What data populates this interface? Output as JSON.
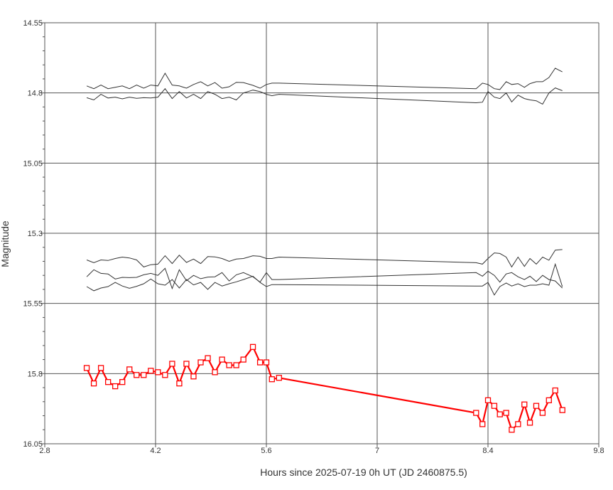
{
  "chart_data": {
    "type": "line",
    "xlabel": "Hours since 2025-07-19 0h UT (JD 2460875.5)",
    "ylabel": "Magnitude",
    "y_inverted": true,
    "xlim": [
      2.8,
      9.8
    ],
    "ylim": [
      14.55,
      16.05
    ],
    "x_ticks": [
      "2.8",
      "4.2",
      "5.6",
      "7",
      "8.4",
      "9.8"
    ],
    "y_ticks": [
      "14.55",
      "14.8",
      "15.05",
      "15.3",
      "15.55",
      "15.8",
      "16.05"
    ],
    "grid": true,
    "legend": "none",
    "target_color": "#ff0000",
    "comparison_color": "#333333",
    "target": {
      "x": [
        3.33,
        3.42,
        3.51,
        3.6,
        3.69,
        3.78,
        3.87,
        3.96,
        4.05,
        4.14,
        4.23,
        4.32,
        4.41,
        4.5,
        4.59,
        4.68,
        4.77,
        4.86,
        4.95,
        5.04,
        5.13,
        5.22,
        5.31,
        5.43,
        5.52,
        5.6,
        5.67,
        5.76,
        8.25,
        8.33,
        8.4,
        8.48,
        8.55,
        8.63,
        8.7,
        8.78,
        8.86,
        8.93,
        9.01,
        9.09,
        9.17,
        9.25,
        9.34
      ],
      "y": [
        15.78,
        15.835,
        15.78,
        15.83,
        15.845,
        15.83,
        15.785,
        15.805,
        15.805,
        15.79,
        15.795,
        15.805,
        15.765,
        15.835,
        15.765,
        15.81,
        15.76,
        15.745,
        15.795,
        15.75,
        15.77,
        15.77,
        15.75,
        15.705,
        15.76,
        15.76,
        15.82,
        15.815,
        15.94,
        15.98,
        15.895,
        15.915,
        15.945,
        15.94,
        16.0,
        15.98,
        15.91,
        15.975,
        15.915,
        15.94,
        15.895,
        15.86,
        15.93
      ]
    },
    "comparison_series": [
      {
        "x": [
          3.33,
          3.42,
          3.51,
          3.6,
          3.69,
          3.78,
          3.87,
          3.96,
          4.05,
          4.14,
          4.23,
          4.32,
          4.41,
          4.5,
          4.59,
          4.68,
          4.77,
          4.86,
          4.95,
          5.04,
          5.13,
          5.22,
          5.31,
          5.43,
          5.52,
          5.6,
          5.67,
          5.76,
          8.25,
          8.33,
          8.4,
          8.48,
          8.55,
          8.63,
          8.7,
          8.78,
          8.86,
          8.93,
          9.01,
          9.09,
          9.17,
          9.25,
          9.34
        ],
        "y": [
          14.775,
          14.785,
          14.772,
          14.785,
          14.78,
          14.775,
          14.785,
          14.772,
          14.783,
          14.772,
          14.775,
          14.73,
          14.772,
          14.775,
          14.783,
          14.77,
          14.76,
          14.775,
          14.763,
          14.783,
          14.778,
          14.762,
          14.763,
          14.773,
          14.783,
          14.77,
          14.765,
          14.765,
          14.785,
          14.765,
          14.77,
          14.785,
          14.788,
          14.76,
          14.77,
          14.767,
          14.78,
          14.767,
          14.76,
          14.76,
          14.745,
          14.712,
          14.725
        ]
      },
      {
        "x": [
          3.33,
          3.42,
          3.51,
          3.6,
          3.69,
          3.78,
          3.87,
          3.96,
          4.05,
          4.14,
          4.23,
          4.32,
          4.41,
          4.5,
          4.59,
          4.68,
          4.77,
          4.86,
          4.95,
          5.04,
          5.13,
          5.22,
          5.31,
          5.43,
          5.52,
          5.6,
          5.67,
          5.76,
          8.25,
          8.33,
          8.4,
          8.48,
          8.55,
          8.63,
          8.7,
          8.78,
          8.86,
          8.93,
          9.01,
          9.09,
          9.17,
          9.25,
          9.34
        ],
        "y": [
          14.817,
          14.825,
          14.805,
          14.818,
          14.815,
          14.821,
          14.815,
          14.819,
          14.817,
          14.818,
          14.815,
          14.785,
          14.82,
          14.795,
          14.818,
          14.805,
          14.82,
          14.795,
          14.805,
          14.82,
          14.815,
          14.825,
          14.8,
          14.79,
          14.795,
          14.805,
          14.81,
          14.805,
          14.835,
          14.833,
          14.795,
          14.815,
          14.82,
          14.8,
          14.832,
          14.808,
          14.82,
          14.825,
          14.828,
          14.84,
          14.8,
          14.782,
          14.792
        ]
      },
      {
        "x": [
          3.33,
          3.42,
          3.51,
          3.6,
          3.69,
          3.78,
          3.87,
          3.96,
          4.05,
          4.14,
          4.23,
          4.32,
          4.41,
          4.5,
          4.59,
          4.68,
          4.77,
          4.86,
          4.95,
          5.04,
          5.13,
          5.22,
          5.31,
          5.43,
          5.52,
          5.6,
          5.67,
          5.76,
          8.25,
          8.33,
          8.4,
          8.48,
          8.55,
          8.63,
          8.7,
          8.78,
          8.86,
          8.93,
          9.01,
          9.09,
          9.17,
          9.25,
          9.34
        ],
        "y": [
          15.395,
          15.405,
          15.395,
          15.397,
          15.39,
          15.385,
          15.388,
          15.395,
          15.42,
          15.412,
          15.41,
          15.38,
          15.408,
          15.378,
          15.404,
          15.392,
          15.408,
          15.383,
          15.384,
          15.39,
          15.4,
          15.392,
          15.39,
          15.38,
          15.382,
          15.39,
          15.39,
          15.385,
          15.405,
          15.41,
          15.39,
          15.37,
          15.372,
          15.385,
          15.42,
          15.385,
          15.418,
          15.39,
          15.41,
          15.385,
          15.396,
          15.36,
          15.358
        ]
      },
      {
        "x": [
          3.33,
          3.42,
          3.51,
          3.6,
          3.69,
          3.78,
          3.87,
          3.96,
          4.05,
          4.14,
          4.23,
          4.32,
          4.41,
          4.5,
          4.59,
          4.68,
          4.77,
          4.86,
          4.95,
          5.04,
          5.13,
          5.22,
          5.31,
          5.43,
          5.52,
          5.6,
          5.67,
          5.76,
          8.25,
          8.33,
          8.4,
          8.48,
          8.55,
          8.63,
          8.7,
          8.78,
          8.86,
          8.93,
          9.01,
          9.09,
          9.17,
          9.25,
          9.34
        ],
        "y": [
          15.455,
          15.43,
          15.443,
          15.445,
          15.463,
          15.457,
          15.458,
          15.457,
          15.448,
          15.443,
          15.45,
          15.425,
          15.497,
          15.43,
          15.469,
          15.45,
          15.462,
          15.456,
          15.455,
          15.44,
          15.47,
          15.448,
          15.44,
          15.455,
          15.474,
          15.44,
          15.465,
          15.465,
          15.44,
          15.453,
          15.435,
          15.45,
          15.474,
          15.445,
          15.44,
          15.455,
          15.465,
          15.453,
          15.472,
          15.45,
          15.465,
          15.47,
          15.495
        ]
      },
      {
        "x": [
          3.33,
          3.42,
          3.51,
          3.6,
          3.69,
          3.78,
          3.87,
          3.96,
          4.05,
          4.14,
          4.23,
          4.32,
          4.41,
          4.5,
          4.59,
          4.68,
          4.77,
          4.86,
          4.95,
          5.04,
          5.13,
          5.22,
          5.31,
          5.43,
          5.52,
          5.6,
          5.67,
          5.76,
          8.25,
          8.33,
          8.4,
          8.48,
          8.55,
          8.63,
          8.7,
          8.78,
          8.86,
          8.93,
          9.01,
          9.09,
          9.17,
          9.25,
          9.34
        ],
        "y": [
          15.49,
          15.505,
          15.495,
          15.49,
          15.475,
          15.488,
          15.496,
          15.489,
          15.48,
          15.463,
          15.48,
          15.485,
          15.465,
          15.495,
          15.465,
          15.484,
          15.475,
          15.5,
          15.475,
          15.488,
          15.48,
          15.473,
          15.465,
          15.453,
          15.475,
          15.49,
          15.483,
          15.483,
          15.488,
          15.488,
          15.475,
          15.52,
          15.49,
          15.477,
          15.488,
          15.48,
          15.49,
          15.485,
          15.485,
          15.48,
          15.485,
          15.41,
          15.49
        ]
      }
    ]
  }
}
